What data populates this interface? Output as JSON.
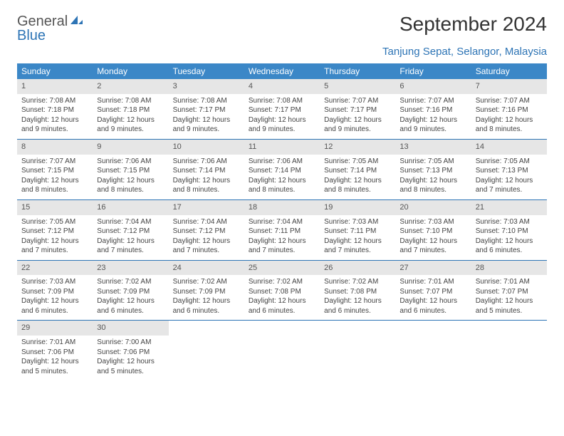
{
  "logo": {
    "first": "General",
    "second": "Blue",
    "icon_color": "#2d74b5"
  },
  "header": {
    "title": "September 2024",
    "location": "Tanjung Sepat, Selangor, Malaysia"
  },
  "colors": {
    "header_bg": "#3b87c7",
    "accent": "#2d74b5",
    "daynum_bg": "#e6e6e6",
    "text": "#444444"
  },
  "dayNames": [
    "Sunday",
    "Monday",
    "Tuesday",
    "Wednesday",
    "Thursday",
    "Friday",
    "Saturday"
  ],
  "days": [
    {
      "n": "1",
      "sunrise": "7:08 AM",
      "sunset": "7:18 PM",
      "daylight": "12 hours and 9 minutes."
    },
    {
      "n": "2",
      "sunrise": "7:08 AM",
      "sunset": "7:18 PM",
      "daylight": "12 hours and 9 minutes."
    },
    {
      "n": "3",
      "sunrise": "7:08 AM",
      "sunset": "7:17 PM",
      "daylight": "12 hours and 9 minutes."
    },
    {
      "n": "4",
      "sunrise": "7:08 AM",
      "sunset": "7:17 PM",
      "daylight": "12 hours and 9 minutes."
    },
    {
      "n": "5",
      "sunrise": "7:07 AM",
      "sunset": "7:17 PM",
      "daylight": "12 hours and 9 minutes."
    },
    {
      "n": "6",
      "sunrise": "7:07 AM",
      "sunset": "7:16 PM",
      "daylight": "12 hours and 9 minutes."
    },
    {
      "n": "7",
      "sunrise": "7:07 AM",
      "sunset": "7:16 PM",
      "daylight": "12 hours and 8 minutes."
    },
    {
      "n": "8",
      "sunrise": "7:07 AM",
      "sunset": "7:15 PM",
      "daylight": "12 hours and 8 minutes."
    },
    {
      "n": "9",
      "sunrise": "7:06 AM",
      "sunset": "7:15 PM",
      "daylight": "12 hours and 8 minutes."
    },
    {
      "n": "10",
      "sunrise": "7:06 AM",
      "sunset": "7:14 PM",
      "daylight": "12 hours and 8 minutes."
    },
    {
      "n": "11",
      "sunrise": "7:06 AM",
      "sunset": "7:14 PM",
      "daylight": "12 hours and 8 minutes."
    },
    {
      "n": "12",
      "sunrise": "7:05 AM",
      "sunset": "7:14 PM",
      "daylight": "12 hours and 8 minutes."
    },
    {
      "n": "13",
      "sunrise": "7:05 AM",
      "sunset": "7:13 PM",
      "daylight": "12 hours and 8 minutes."
    },
    {
      "n": "14",
      "sunrise": "7:05 AM",
      "sunset": "7:13 PM",
      "daylight": "12 hours and 7 minutes."
    },
    {
      "n": "15",
      "sunrise": "7:05 AM",
      "sunset": "7:12 PM",
      "daylight": "12 hours and 7 minutes."
    },
    {
      "n": "16",
      "sunrise": "7:04 AM",
      "sunset": "7:12 PM",
      "daylight": "12 hours and 7 minutes."
    },
    {
      "n": "17",
      "sunrise": "7:04 AM",
      "sunset": "7:12 PM",
      "daylight": "12 hours and 7 minutes."
    },
    {
      "n": "18",
      "sunrise": "7:04 AM",
      "sunset": "7:11 PM",
      "daylight": "12 hours and 7 minutes."
    },
    {
      "n": "19",
      "sunrise": "7:03 AM",
      "sunset": "7:11 PM",
      "daylight": "12 hours and 7 minutes."
    },
    {
      "n": "20",
      "sunrise": "7:03 AM",
      "sunset": "7:10 PM",
      "daylight": "12 hours and 7 minutes."
    },
    {
      "n": "21",
      "sunrise": "7:03 AM",
      "sunset": "7:10 PM",
      "daylight": "12 hours and 6 minutes."
    },
    {
      "n": "22",
      "sunrise": "7:03 AM",
      "sunset": "7:09 PM",
      "daylight": "12 hours and 6 minutes."
    },
    {
      "n": "23",
      "sunrise": "7:02 AM",
      "sunset": "7:09 PM",
      "daylight": "12 hours and 6 minutes."
    },
    {
      "n": "24",
      "sunrise": "7:02 AM",
      "sunset": "7:09 PM",
      "daylight": "12 hours and 6 minutes."
    },
    {
      "n": "25",
      "sunrise": "7:02 AM",
      "sunset": "7:08 PM",
      "daylight": "12 hours and 6 minutes."
    },
    {
      "n": "26",
      "sunrise": "7:02 AM",
      "sunset": "7:08 PM",
      "daylight": "12 hours and 6 minutes."
    },
    {
      "n": "27",
      "sunrise": "7:01 AM",
      "sunset": "7:07 PM",
      "daylight": "12 hours and 6 minutes."
    },
    {
      "n": "28",
      "sunrise": "7:01 AM",
      "sunset": "7:07 PM",
      "daylight": "12 hours and 5 minutes."
    },
    {
      "n": "29",
      "sunrise": "7:01 AM",
      "sunset": "7:06 PM",
      "daylight": "12 hours and 5 minutes."
    },
    {
      "n": "30",
      "sunrise": "7:00 AM",
      "sunset": "7:06 PM",
      "daylight": "12 hours and 5 minutes."
    }
  ],
  "labels": {
    "sunrise": "Sunrise: ",
    "sunset": "Sunset: ",
    "daylight": "Daylight: "
  }
}
